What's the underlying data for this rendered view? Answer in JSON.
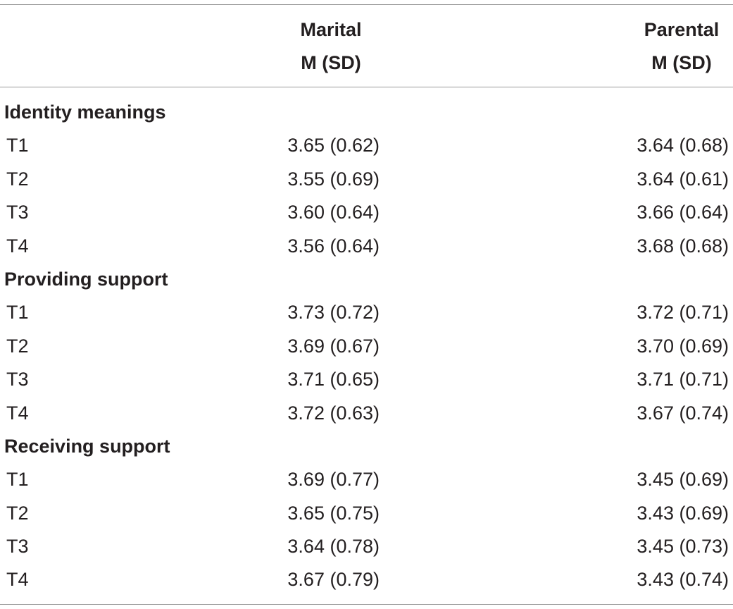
{
  "columns": {
    "marital": {
      "title": "Marital",
      "subtitle": "M (SD)"
    },
    "parental": {
      "title": "Parental",
      "subtitle": "M (SD)"
    }
  },
  "sections": [
    {
      "title": "Identity meanings",
      "rows": [
        {
          "label": "T1",
          "marital": "3.65 (0.62)",
          "parental": "3.64 (0.68)"
        },
        {
          "label": "T2",
          "marital": "3.55 (0.69)",
          "parental": "3.64 (0.61)"
        },
        {
          "label": "T3",
          "marital": "3.60 (0.64)",
          "parental": "3.66 (0.64)"
        },
        {
          "label": "T4",
          "marital": "3.56 (0.64)",
          "parental": "3.68 (0.68)"
        }
      ]
    },
    {
      "title": "Providing support",
      "rows": [
        {
          "label": "T1",
          "marital": "3.73 (0.72)",
          "parental": "3.72 (0.71)"
        },
        {
          "label": "T2",
          "marital": "3.69 (0.67)",
          "parental": "3.70 (0.69)"
        },
        {
          "label": "T3",
          "marital": "3.71 (0.65)",
          "parental": "3.71 (0.71)"
        },
        {
          "label": "T4",
          "marital": "3.72 (0.63)",
          "parental": "3.67 (0.74)"
        }
      ]
    },
    {
      "title": "Receiving support",
      "rows": [
        {
          "label": "T1",
          "marital": "3.69 (0.77)",
          "parental": "3.45 (0.69)"
        },
        {
          "label": "T2",
          "marital": "3.65 (0.75)",
          "parental": "3.43 (0.69)"
        },
        {
          "label": "T3",
          "marital": "3.64 (0.78)",
          "parental": "3.45 (0.73)"
        },
        {
          "label": "T4",
          "marital": "3.67 (0.79)",
          "parental": "3.43 (0.74)"
        }
      ]
    }
  ]
}
